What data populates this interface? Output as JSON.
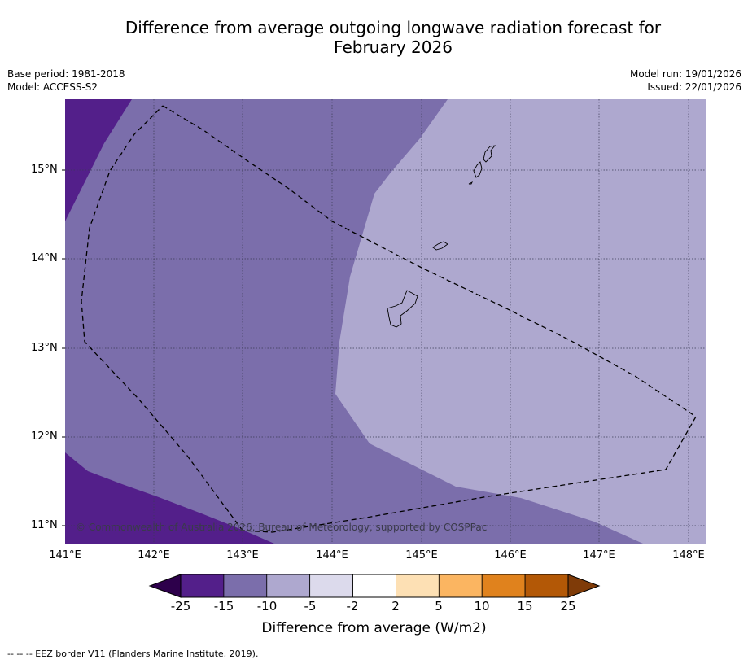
{
  "title_line1": "Difference from average outgoing longwave radiation forecast for",
  "title_line2": "February 2026",
  "meta": {
    "base_period": "Base period: 1981-2018",
    "model": "Model: ACCESS-S2",
    "model_run": "Model run: 19/01/2026",
    "issued": "Issued: 22/01/2026"
  },
  "credit": "© Commonwealth of Australia 2026, Bureau of Meteorology, supported by COSPPac",
  "lat_labels": [
    "15°N",
    "14°N",
    "13°N",
    "12°N",
    "11°N"
  ],
  "lon_labels": [
    "141°E",
    "142°E",
    "143°E",
    "144°E",
    "145°E",
    "146°E",
    "147°E",
    "148°E"
  ],
  "colorbar": {
    "title": "Difference from average (W/m2)",
    "ticks": [
      "-25",
      "-15",
      "-10",
      "-5",
      "-2",
      "2",
      "5",
      "10",
      "15",
      "25"
    ],
    "colors": [
      "#531f8a",
      "#7b6eab",
      "#aea8cf",
      "#dcdaec",
      "#ffffff",
      "#fde0b4",
      "#fbb561",
      "#e0821d",
      "#b35806"
    ],
    "under_color": "#2d004b",
    "over_color": "#7f3b08"
  },
  "footnote": "--  --  -- EEZ border V11 (Flanders Marine Institute, 2019)."
}
